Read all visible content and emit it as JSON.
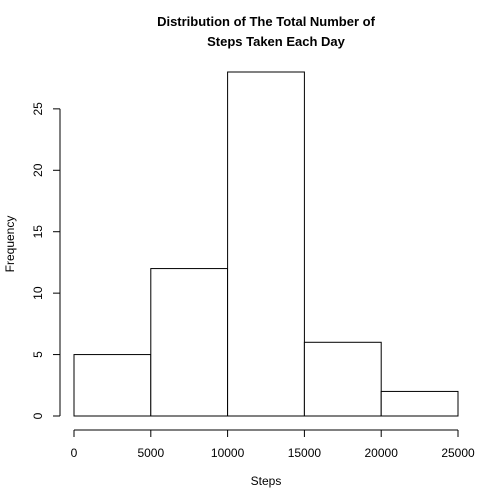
{
  "chart_data": {
    "type": "bar",
    "title_line1": "Distribution of The Total Number of",
    "title_line2": "Steps Taken Each Day",
    "xlabel": "Steps",
    "ylabel": "Frequency",
    "bins": [
      {
        "start": 0,
        "end": 5000,
        "count": 5
      },
      {
        "start": 5000,
        "end": 10000,
        "count": 12
      },
      {
        "start": 10000,
        "end": 15000,
        "count": 28
      },
      {
        "start": 15000,
        "end": 20000,
        "count": 6
      },
      {
        "start": 20000,
        "end": 25000,
        "count": 2
      }
    ],
    "xlim": [
      0,
      25000
    ],
    "ylim": [
      0,
      28
    ],
    "x_ticks": [
      0,
      5000,
      10000,
      15000,
      20000,
      25000
    ],
    "y_ticks": [
      0,
      5,
      10,
      15,
      20,
      25
    ],
    "grid": false,
    "legend": "none"
  }
}
